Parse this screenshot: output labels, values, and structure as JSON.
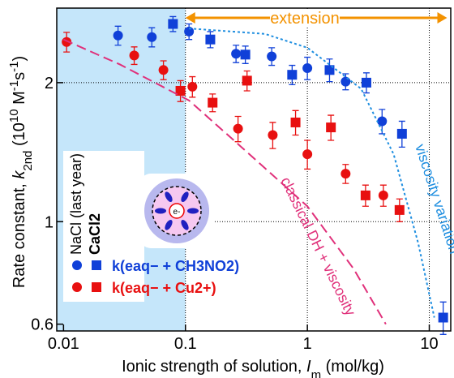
{
  "chart_data": {
    "type": "scatter",
    "xlabel": [
      "Ionic strength of solution, ",
      "I",
      "m",
      " (mol/kg)"
    ],
    "ylabel": [
      "Rate constant, ",
      "k",
      "2nd",
      " (10",
      "10",
      " M",
      "-1",
      "s",
      "-1",
      ")"
    ],
    "xscale": "log",
    "yscale": "log",
    "xlim": [
      0.0088,
      15
    ],
    "ylim": [
      0.58,
      2.9
    ],
    "xticks": [
      0.01,
      0.1,
      1,
      10
    ],
    "yticks": [
      0.6,
      1,
      2
    ],
    "grid": true,
    "shaded_region": [
      0.0088,
      0.1
    ],
    "extension": {
      "label": "extension",
      "range": [
        0.1,
        14
      ],
      "color": "#f39200"
    },
    "series": [
      {
        "color": "#1040d8",
        "marker": "circle",
        "x": [
          0.028,
          0.053,
          0.107,
          0.26,
          0.51,
          1.0,
          2.06,
          4.1
        ],
        "values": [
          2.53,
          2.51,
          2.58,
          2.31,
          2.28,
          2.15,
          2.01,
          1.65
        ],
        "errors": [
          0.12,
          0.12,
          0.1,
          0.1,
          0.1,
          0.12,
          0.08,
          0.1
        ]
      },
      {
        "color": "#1040d8",
        "marker": "square",
        "x": [
          0.079,
          0.16,
          0.31,
          0.75,
          1.52,
          3.05,
          5.97,
          13
        ],
        "values": [
          2.68,
          2.48,
          2.3,
          2.08,
          2.13,
          2.0,
          1.55,
          0.62
        ],
        "errors": [
          0.1,
          0.1,
          0.1,
          0.1,
          0.12,
          0.1,
          0.1,
          0.05
        ]
      },
      {
        "color": "#e81010",
        "marker": "circle",
        "x": [
          0.0106,
          0.038,
          0.066,
          0.114,
          0.27,
          0.52,
          1.0,
          2.06,
          4.2
        ],
        "values": [
          2.45,
          2.29,
          2.13,
          1.96,
          1.59,
          1.54,
          1.4,
          1.27,
          1.14
        ],
        "errors": [
          0.12,
          0.1,
          0.1,
          0.1,
          0.1,
          0.1,
          0.1,
          0.06,
          0.06
        ]
      },
      {
        "color": "#e81010",
        "marker": "square",
        "x": [
          0.091,
          0.167,
          0.32,
          0.8,
          1.56,
          3.0,
          5.7
        ],
        "values": [
          1.92,
          1.81,
          2.02,
          1.64,
          1.6,
          1.14,
          1.06
        ],
        "errors": [
          0.1,
          0.08,
          0.1,
          0.1,
          0.1,
          0.06,
          0.06
        ]
      },
      {
        "color": "#1e8ee0",
        "marker": "dotted",
        "x": [
          0.107,
          0.45,
          1.0,
          2.76,
          5.1,
          8.1,
          11.0
        ],
        "values": [
          2.62,
          2.55,
          2.38,
          1.94,
          1.4,
          0.9,
          0.62
        ]
      },
      {
        "color": "#e0307a",
        "marker": "dashed",
        "x": [
          0.01,
          0.029,
          0.107,
          0.28,
          1.0,
          2.4,
          4.4
        ],
        "values": [
          2.48,
          2.19,
          1.83,
          1.46,
          1.08,
          0.79,
          0.6
        ]
      }
    ],
    "legend": {
      "columns": [
        "NaCl (last year)",
        "CaCl2"
      ],
      "rows": [
        "k(eaq− + CH3NO2)",
        "k(eaq− + Cu2+)"
      ]
    },
    "annotations": [
      {
        "text": "viscosity variation",
        "color": "#1e8ee0"
      },
      {
        "text": "classical DH + viscosity",
        "color": "#e0307a"
      }
    ],
    "inset": {
      "label": "e-"
    }
  }
}
